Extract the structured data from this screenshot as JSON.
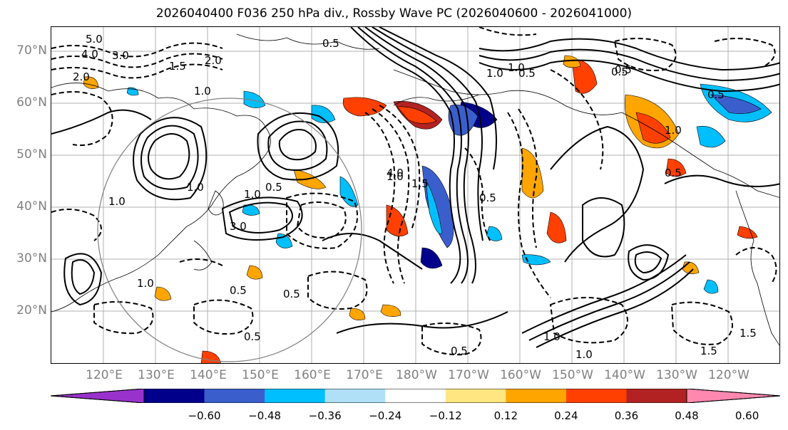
{
  "title": "2026040400 F036 250 hPa div., Rossby Wave PC (2026040600 - 2026041000)",
  "lat_labels": [
    "70°N",
    "60°N",
    "50°N",
    "40°N",
    "30°N",
    "20°N"
  ],
  "lon_labels": [
    "120°E",
    "130°E",
    "140°E",
    "150°E",
    "160°E",
    "170°E",
    "180°W",
    "170°W",
    "160°W",
    "150°W",
    "140°W",
    "130°W",
    "120°W"
  ],
  "colorbar": {
    "colors": [
      "#9932cc",
      "#00008b",
      "#3a5fcd",
      "#00bfff",
      "#b0e0f8",
      "#ffffff",
      "#ffe680",
      "#ffa500",
      "#ff4000",
      "#b22222",
      "#ff88b0"
    ],
    "tick_labels": [
      "−0.60",
      "−0.48",
      "−0.36",
      "−0.24",
      "−0.12",
      "0.12",
      "0.24",
      "0.36",
      "0.48",
      "0.60"
    ]
  },
  "contour_labels": [
    "5.0",
    "4.0",
    "3.0",
    "2.0",
    "1.5",
    "1.0",
    "0.5",
    "3.0",
    "1.0",
    "0.5",
    "2.0",
    "1.0",
    "0.5",
    "1.5",
    "1.0",
    "0.5",
    "1.0",
    "0.5",
    "4.0",
    "1.0",
    "0.5",
    "1.5",
    "1.0",
    "1.0",
    "0.5",
    "0.5",
    "1.0",
    "0.5",
    "1.0",
    "0.5",
    "1.5",
    "1.0",
    "0.5",
    "0.5"
  ]
}
